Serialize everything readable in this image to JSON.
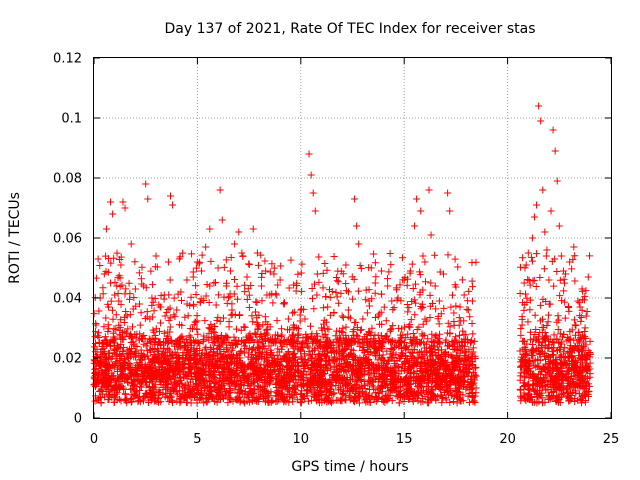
{
  "chart_data": {
    "type": "scatter",
    "title": "Day 137 of 2021, Rate Of TEC Index for receiver stas",
    "xlabel": "GPS time / hours",
    "ylabel": "ROTI / TECUs",
    "xlim": [
      0,
      25
    ],
    "ylim": [
      0,
      0.12
    ],
    "xticks": [
      "0",
      "5",
      "10",
      "15",
      "20",
      "25"
    ],
    "yticks": [
      "0",
      "0.02",
      "0.04",
      "0.06",
      "0.08",
      "0.1",
      "0.12"
    ],
    "grid": true,
    "marker": "+",
    "color": "#ff0000",
    "data_gap_hours": [
      18.5,
      20.6
    ],
    "series": [
      {
        "points": [
          [
            0.1,
            0.031
          ],
          [
            0.2,
            0.053
          ],
          [
            0.3,
            0.04
          ],
          [
            0.5,
            0.048
          ],
          [
            0.6,
            0.063
          ],
          [
            0.7,
            0.037
          ],
          [
            0.8,
            0.045
          ],
          [
            0.8,
            0.072
          ],
          [
            0.9,
            0.068
          ],
          [
            1.0,
            0.041
          ],
          [
            1.1,
            0.044
          ],
          [
            1.2,
            0.039
          ],
          [
            1.3,
            0.051
          ],
          [
            1.4,
            0.072
          ],
          [
            1.5,
            0.07
          ],
          [
            1.6,
            0.034
          ],
          [
            1.8,
            0.058
          ],
          [
            2.0,
            0.043
          ],
          [
            2.2,
            0.038
          ],
          [
            2.4,
            0.044
          ],
          [
            2.5,
            0.078
          ],
          [
            2.6,
            0.073
          ],
          [
            2.7,
            0.033
          ],
          [
            2.8,
            0.04
          ],
          [
            3.0,
            0.054
          ],
          [
            3.2,
            0.037
          ],
          [
            3.4,
            0.041
          ],
          [
            3.6,
            0.052
          ],
          [
            3.7,
            0.074
          ],
          [
            3.8,
            0.071
          ],
          [
            4.0,
            0.036
          ],
          [
            4.2,
            0.042
          ],
          [
            4.5,
            0.038
          ],
          [
            4.8,
            0.047
          ],
          [
            5.0,
            0.052
          ],
          [
            5.2,
            0.049
          ],
          [
            5.4,
            0.057
          ],
          [
            5.6,
            0.063
          ],
          [
            5.8,
            0.045
          ],
          [
            6.0,
            0.05
          ],
          [
            6.1,
            0.076
          ],
          [
            6.2,
            0.066
          ],
          [
            6.4,
            0.044
          ],
          [
            6.6,
            0.049
          ],
          [
            6.8,
            0.058
          ],
          [
            7.0,
            0.062
          ],
          [
            7.2,
            0.054
          ],
          [
            7.4,
            0.047
          ],
          [
            7.7,
            0.063
          ],
          [
            7.9,
            0.055
          ],
          [
            8.1,
            0.044
          ],
          [
            8.3,
            0.049
          ],
          [
            8.5,
            0.041
          ],
          [
            8.7,
            0.048
          ],
          [
            9.0,
            0.046
          ],
          [
            9.2,
            0.038
          ],
          [
            9.4,
            0.033
          ],
          [
            9.6,
            0.035
          ],
          [
            9.8,
            0.03
          ],
          [
            10.0,
            0.036
          ],
          [
            10.2,
            0.033
          ],
          [
            10.4,
            0.088
          ],
          [
            10.5,
            0.081
          ],
          [
            10.6,
            0.075
          ],
          [
            10.7,
            0.069
          ],
          [
            10.8,
            0.048
          ],
          [
            11.0,
            0.03
          ],
          [
            11.3,
            0.037
          ],
          [
            11.6,
            0.035
          ],
          [
            12.0,
            0.034
          ],
          [
            12.3,
            0.036
          ],
          [
            12.6,
            0.073
          ],
          [
            12.7,
            0.064
          ],
          [
            12.8,
            0.058
          ],
          [
            13.0,
            0.033
          ],
          [
            13.3,
            0.039
          ],
          [
            13.6,
            0.045
          ],
          [
            13.9,
            0.049
          ],
          [
            14.2,
            0.044
          ],
          [
            14.4,
            0.039
          ],
          [
            14.7,
            0.04
          ],
          [
            15.0,
            0.046
          ],
          [
            15.3,
            0.049
          ],
          [
            15.5,
            0.064
          ],
          [
            15.6,
            0.073
          ],
          [
            15.8,
            0.069
          ],
          [
            16.0,
            0.052
          ],
          [
            16.2,
            0.076
          ],
          [
            16.3,
            0.061
          ],
          [
            16.5,
            0.044
          ],
          [
            16.7,
            0.039
          ],
          [
            16.9,
            0.048
          ],
          [
            17.1,
            0.075
          ],
          [
            17.2,
            0.069
          ],
          [
            17.4,
            0.035
          ],
          [
            17.7,
            0.037
          ],
          [
            17.9,
            0.041
          ],
          [
            18.1,
            0.036
          ],
          [
            18.3,
            0.039
          ],
          [
            20.7,
            0.031
          ],
          [
            20.8,
            0.045
          ],
          [
            20.9,
            0.051
          ],
          [
            21.0,
            0.055
          ],
          [
            21.2,
            0.06
          ],
          [
            21.3,
            0.067
          ],
          [
            21.4,
            0.071
          ],
          [
            21.5,
            0.104
          ],
          [
            21.6,
            0.099
          ],
          [
            21.7,
            0.076
          ],
          [
            21.8,
            0.062
          ],
          [
            21.9,
            0.056
          ],
          [
            22.0,
            0.046
          ],
          [
            22.1,
            0.069
          ],
          [
            22.2,
            0.096
          ],
          [
            22.3,
            0.089
          ],
          [
            22.4,
            0.079
          ],
          [
            22.5,
            0.064
          ],
          [
            22.6,
            0.054
          ],
          [
            22.8,
            0.048
          ],
          [
            23.0,
            0.052
          ],
          [
            23.2,
            0.057
          ],
          [
            23.4,
            0.039
          ],
          [
            23.6,
            0.043
          ],
          [
            23.8,
            0.034
          ],
          [
            23.9,
            0.047
          ]
        ],
        "dense_band": {
          "y_min": 0.005,
          "y_max": 0.028,
          "typical": 0.015
        }
      }
    ]
  }
}
